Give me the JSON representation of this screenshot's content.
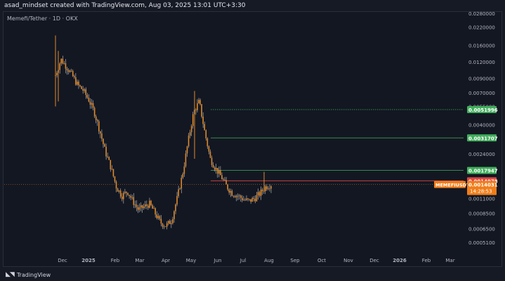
{
  "header": {
    "caption": "asad_mindset created with TradingView.com, Aug 03, 2025 13:01 UTC+3:30",
    "symbol_title": "Memefi/Tether · 1D · OKX"
  },
  "footer": {
    "brand": "TradingView",
    "logo_icon": "tradingview-logo-icon"
  },
  "colors": {
    "background": "#131722",
    "axis_text": "#b2b5be",
    "candle": "#e08a2a",
    "candle_wick": "#c8c8c8",
    "green_line": "#3fae5a",
    "red_line": "#e0473f",
    "symbol_badge": "#f07d1a"
  },
  "chart_data": {
    "type": "line",
    "symbol": "MEMEFIUSDT",
    "x_tick_labels": [
      "Dec",
      "2025",
      "Feb",
      "Mar",
      "Apr",
      "May",
      "Jun",
      "Jul",
      "Aug",
      "Sep",
      "Oct",
      "Nov",
      "Dec",
      "2026",
      "Feb",
      "Mar"
    ],
    "y_tick_labels": [
      "0.0280000",
      "0.0220000",
      "0.0160000",
      "0.0120000",
      "0.0090000",
      "0.0070000",
      "0.0055000",
      "0.0040000",
      "0.0024000",
      "0.0011000",
      "0.0008500",
      "0.0006500",
      "0.0005100"
    ],
    "y_tick_values": [
      0.028,
      0.022,
      0.016,
      0.012,
      0.009,
      0.007,
      0.0055,
      0.004,
      0.0024,
      0.0011,
      0.00085,
      0.00065,
      0.00051
    ],
    "y_scale": "log",
    "price_series": {
      "name": "MEMEFIUSDT",
      "x": [
        "Nov 21",
        "Nov 25",
        "Nov 30",
        "Dec 5",
        "Dec 12",
        "Dec 20",
        "Dec 28",
        "Jan 5",
        "Jan 12",
        "Jan 20",
        "Jan 28",
        "Feb 5",
        "Feb 12",
        "Feb 20",
        "Feb 28",
        "Mar 8",
        "Mar 15",
        "Mar 22",
        "Mar 30",
        "Apr 5",
        "Apr 12",
        "Apr 18",
        "Apr 22",
        "Apr 26",
        "Apr 30",
        "May 4",
        "May 8",
        "May 12",
        "May 18",
        "May 25",
        "Jun 1",
        "Jun 8",
        "Jun 15",
        "Jun 22",
        "Jun 30",
        "Jul 8",
        "Jul 15",
        "Jul 22",
        "Jul 28",
        "Aug 3"
      ],
      "values": [
        0.0095,
        0.0125,
        0.011,
        0.0095,
        0.008,
        0.0073,
        0.0062,
        0.005,
        0.0036,
        0.0025,
        0.0019,
        0.00135,
        0.00115,
        0.00125,
        0.00105,
        0.0009,
        0.00095,
        0.001,
        0.00085,
        0.00072,
        0.00068,
        0.00075,
        0.0011,
        0.0017,
        0.003,
        0.005,
        0.006,
        0.0035,
        0.0022,
        0.00185,
        0.0016,
        0.00135,
        0.0012,
        0.00115,
        0.00108,
        0.00105,
        0.0011,
        0.0012,
        0.00135,
        0.0014031
      ]
    },
    "horizontal_levels": [
      {
        "value": 0.0051996,
        "label": "0.0051996",
        "color": "#3fae5a"
      },
      {
        "value": 0.0031707,
        "label": "0.0031707",
        "color": "#3fae5a"
      },
      {
        "value": 0.0017947,
        "label": "0.0017947",
        "color": "#3fae5a"
      },
      {
        "value": 0.0014978,
        "label": "0.0014978",
        "color": "#e0473f"
      }
    ],
    "last_price": {
      "symbol": "MEMEFIUSDT",
      "value": "0.0014031",
      "countdown": "14:28:53"
    },
    "grid": false
  }
}
